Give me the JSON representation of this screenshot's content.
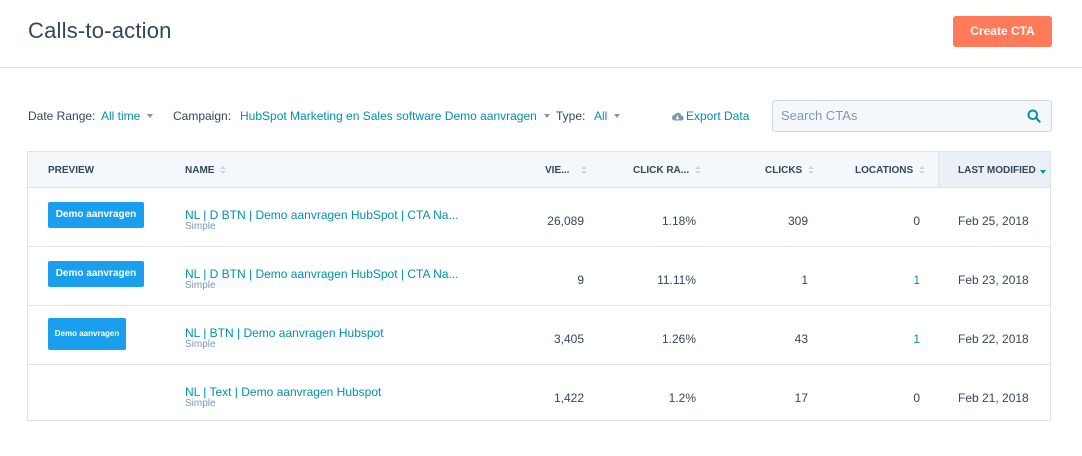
{
  "header": {
    "title": "Calls-to-action",
    "create_button": "Create CTA"
  },
  "filters": {
    "date_range_label": "Date Range:",
    "date_range_value": "All time",
    "campaign_label": "Campaign:",
    "campaign_value": "HubSpot Marketing en Sales software Demo aanvragen",
    "type_label": "Type:",
    "type_value": "All",
    "export_label": "Export Data",
    "search_placeholder": "Search CTAs"
  },
  "table": {
    "columns": {
      "preview": "PREVIEW",
      "name": "NAME",
      "views": "VIE...",
      "click_rate": "CLICK RA...",
      "clicks": "CLICKS",
      "locations": "LOCATIONS",
      "last_modified": "LAST MODIFIED"
    },
    "rows": [
      {
        "preview": "Demo aanvragen",
        "name": "NL | D BTN | Demo aanvragen HubSpot | CTA Na...",
        "type": "Simple",
        "views": "26,089",
        "click_rate": "1.18%",
        "clicks": "309",
        "locations": "0",
        "last_modified": "Feb 25, 2018"
      },
      {
        "preview": "Demo aanvragen",
        "name": "NL | D BTN | Demo aanvragen HubSpot | CTA Na...",
        "type": "Simple",
        "views": "9",
        "click_rate": "11.11%",
        "clicks": "1",
        "locations": "1",
        "last_modified": "Feb 23, 2018"
      },
      {
        "preview": "Demo aanvragen",
        "name": "NL | BTN | Demo aanvragen Hubspot",
        "type": "Simple",
        "views": "3,405",
        "click_rate": "1.26%",
        "clicks": "43",
        "locations": "1",
        "last_modified": "Feb 22, 2018"
      },
      {
        "preview": "",
        "name": "NL | Text | Demo aanvragen Hubspot",
        "type": "Simple",
        "views": "1,422",
        "click_rate": "1.2%",
        "clicks": "17",
        "locations": "0",
        "last_modified": "Feb 21, 2018"
      }
    ]
  },
  "colors": {
    "accent": "#0091ae",
    "primary_button": "#ff7a59",
    "cta_preview": "#1a9fee",
    "text": "#33475b"
  },
  "icons": {
    "export": "cloud-download-icon",
    "search": "search-icon",
    "sort": "sort-arrows-icon"
  }
}
